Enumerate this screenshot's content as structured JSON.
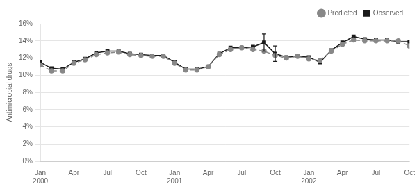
{
  "chart_data": {
    "type": "line",
    "ylabel": "Antimicrobial drugs",
    "categories": [
      "Jan\n2000",
      null,
      null,
      "Apr",
      null,
      null,
      "Jul",
      null,
      null,
      "Oct",
      null,
      null,
      "Jan\n2001",
      null,
      null,
      "Apr",
      null,
      null,
      "Jul",
      null,
      null,
      "Oct",
      null,
      null,
      "Jan\n2002",
      null,
      null,
      "Apr",
      null,
      null,
      "Jul",
      null,
      null,
      "Oct"
    ],
    "series": [
      {
        "name": "Predicted",
        "color": "#888888",
        "marker": "circle",
        "line_style": "dashed",
        "values": [
          11.2,
          10.5,
          10.5,
          11.4,
          11.8,
          12.4,
          12.6,
          12.7,
          12.4,
          12.3,
          12.2,
          12.2,
          11.4,
          10.6,
          10.6,
          11.0,
          12.4,
          13.0,
          13.2,
          13.0,
          12.8,
          12.3,
          12.0,
          12.2,
          11.9,
          11.7,
          12.8,
          13.6,
          14.1,
          14.0,
          14.0,
          14.0,
          14.0,
          13.4
        ]
      },
      {
        "name": "Observed",
        "color": "#1a1a1a",
        "marker": "square",
        "line_style": "solid",
        "values": [
          11.5,
          10.8,
          10.7,
          11.5,
          11.9,
          12.6,
          12.8,
          12.8,
          12.5,
          12.4,
          12.3,
          12.3,
          11.5,
          10.7,
          10.7,
          11.0,
          12.5,
          13.2,
          13.2,
          13.3,
          13.8,
          12.5,
          12.1,
          12.2,
          12.1,
          11.5,
          12.9,
          13.8,
          14.5,
          14.2,
          14.1,
          14.1,
          13.9,
          13.9
        ],
        "error_minus": [
          null,
          null,
          null,
          null,
          null,
          null,
          null,
          null,
          null,
          null,
          null,
          null,
          null,
          null,
          null,
          null,
          null,
          null,
          null,
          null,
          1.0,
          0.9,
          null,
          null,
          null,
          null,
          null,
          null,
          null,
          null,
          null,
          null,
          null,
          null
        ],
        "error_plus": [
          null,
          null,
          null,
          null,
          null,
          null,
          null,
          null,
          null,
          null,
          null,
          null,
          null,
          null,
          null,
          null,
          null,
          null,
          null,
          null,
          1.0,
          0.9,
          null,
          null,
          null,
          null,
          null,
          null,
          null,
          null,
          null,
          null,
          null,
          null
        ]
      }
    ],
    "ylim": [
      0,
      16
    ],
    "yticks": [
      {
        "value": 0,
        "label": "0%"
      },
      {
        "value": 2,
        "label": "2%"
      },
      {
        "value": 4,
        "label": "4%"
      },
      {
        "value": 6,
        "label": "6%"
      },
      {
        "value": 8,
        "label": "8%"
      },
      {
        "value": 10,
        "label": "10%"
      },
      {
        "value": 12,
        "label": "12%"
      },
      {
        "value": 14,
        "label": "14%"
      },
      {
        "value": 16,
        "label": "16%"
      }
    ],
    "grid": "y",
    "legend": "upper right"
  }
}
